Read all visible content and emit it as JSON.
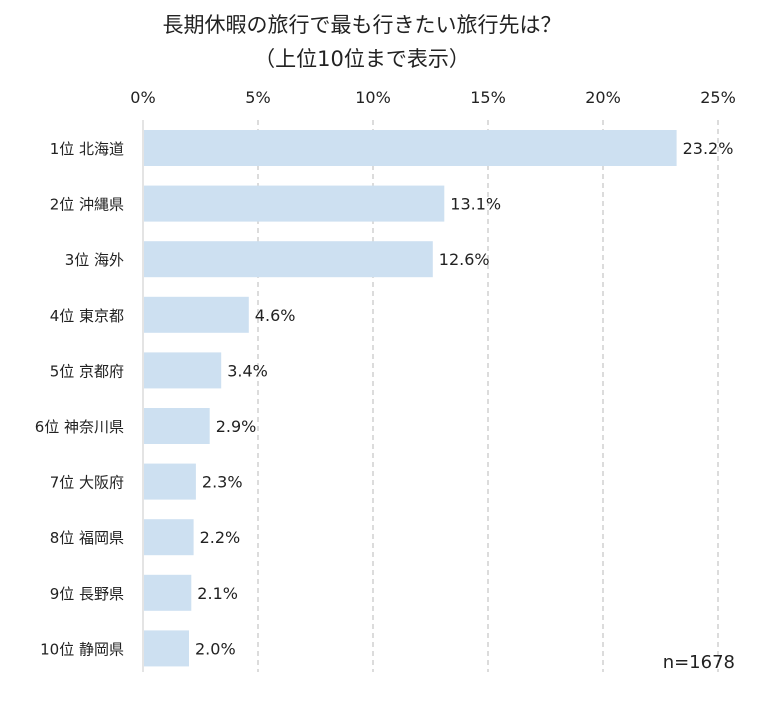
{
  "chart_data": {
    "type": "bar",
    "orientation": "horizontal",
    "title": "長期休暇の旅行で最も行きたい旅行先は？",
    "subtitle": "（上位10位まで表示）",
    "x_ticks": [
      "0%",
      "5%",
      "10%",
      "15%",
      "20%",
      "25%"
    ],
    "xlim": [
      0,
      25
    ],
    "grid": true,
    "categories": [
      "1位 北海道",
      "2位 沖縄県",
      "3位 海外",
      "4位 東京都",
      "5位 京都府",
      "6位 神奈川県",
      "7位 大阪府",
      "8位 福岡県",
      "9位 長野県",
      "10位 静岡県"
    ],
    "values": [
      23.2,
      13.1,
      12.6,
      4.6,
      3.4,
      2.9,
      2.3,
      2.2,
      2.1,
      2.0
    ],
    "value_labels": [
      "23.2%",
      "13.1%",
      "12.6%",
      "4.6%",
      "3.4%",
      "2.9%",
      "2.3%",
      "2.2%",
      "2.1%",
      "2.0%"
    ],
    "bar_color": "#cde0f1",
    "note": "n=1678"
  }
}
